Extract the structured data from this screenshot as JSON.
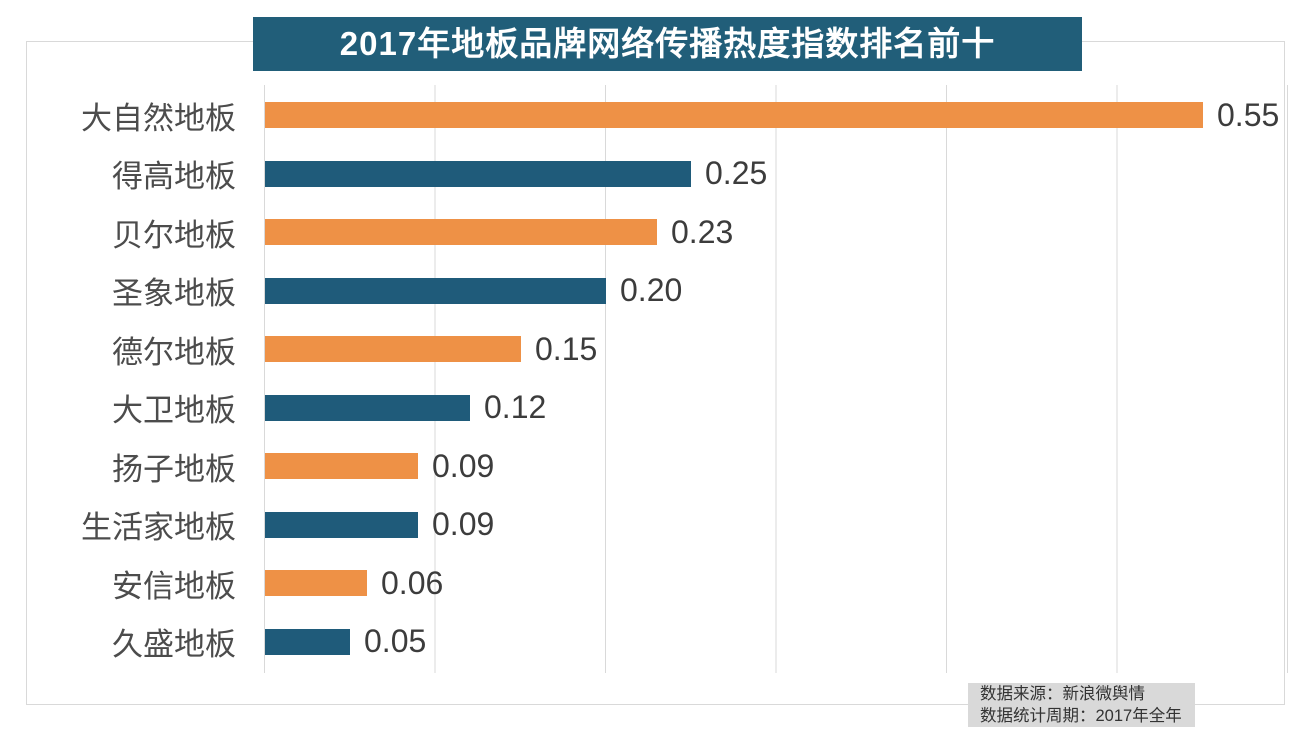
{
  "title": "2017年地板品牌网络传播热度指数排名前十",
  "colors": {
    "title_bg": "#215e79",
    "bar_orange": "#ee9146",
    "bar_blue": "#1f5b7a",
    "gridline": "#d9d9d9",
    "note_bg": "#d9d9d9"
  },
  "source_note": {
    "line1": "数据来源：新浪微舆情",
    "line2": "数据统计周期：2017年全年"
  },
  "chart_data": {
    "type": "bar",
    "orientation": "horizontal",
    "title": "2017年地板品牌网络传播热度指数排名前十",
    "categories": [
      "大自然地板",
      "得高地板",
      "贝尔地板",
      "圣象地板",
      "德尔地板",
      "大卫地板",
      "扬子地板",
      "生活家地板",
      "安信地板",
      "久盛地板"
    ],
    "values": [
      0.55,
      0.25,
      0.23,
      0.2,
      0.15,
      0.12,
      0.09,
      0.09,
      0.06,
      0.05
    ],
    "value_labels": [
      "0.55",
      "0.25",
      "0.23",
      "0.20",
      "0.15",
      "0.12",
      "0.09",
      "0.09",
      "0.06",
      "0.05"
    ],
    "bar_colors": [
      "#ee9146",
      "#1f5b7a",
      "#ee9146",
      "#1f5b7a",
      "#ee9146",
      "#1f5b7a",
      "#ee9146",
      "#1f5b7a",
      "#ee9146",
      "#1f5b7a"
    ],
    "xlim": [
      0,
      0.6
    ],
    "gridline_interval": 0.1,
    "grid": "vertical-on",
    "legend": "none",
    "annotations": [
      "数据来源：新浪微舆情",
      "数据统计周期：2017年全年"
    ]
  }
}
